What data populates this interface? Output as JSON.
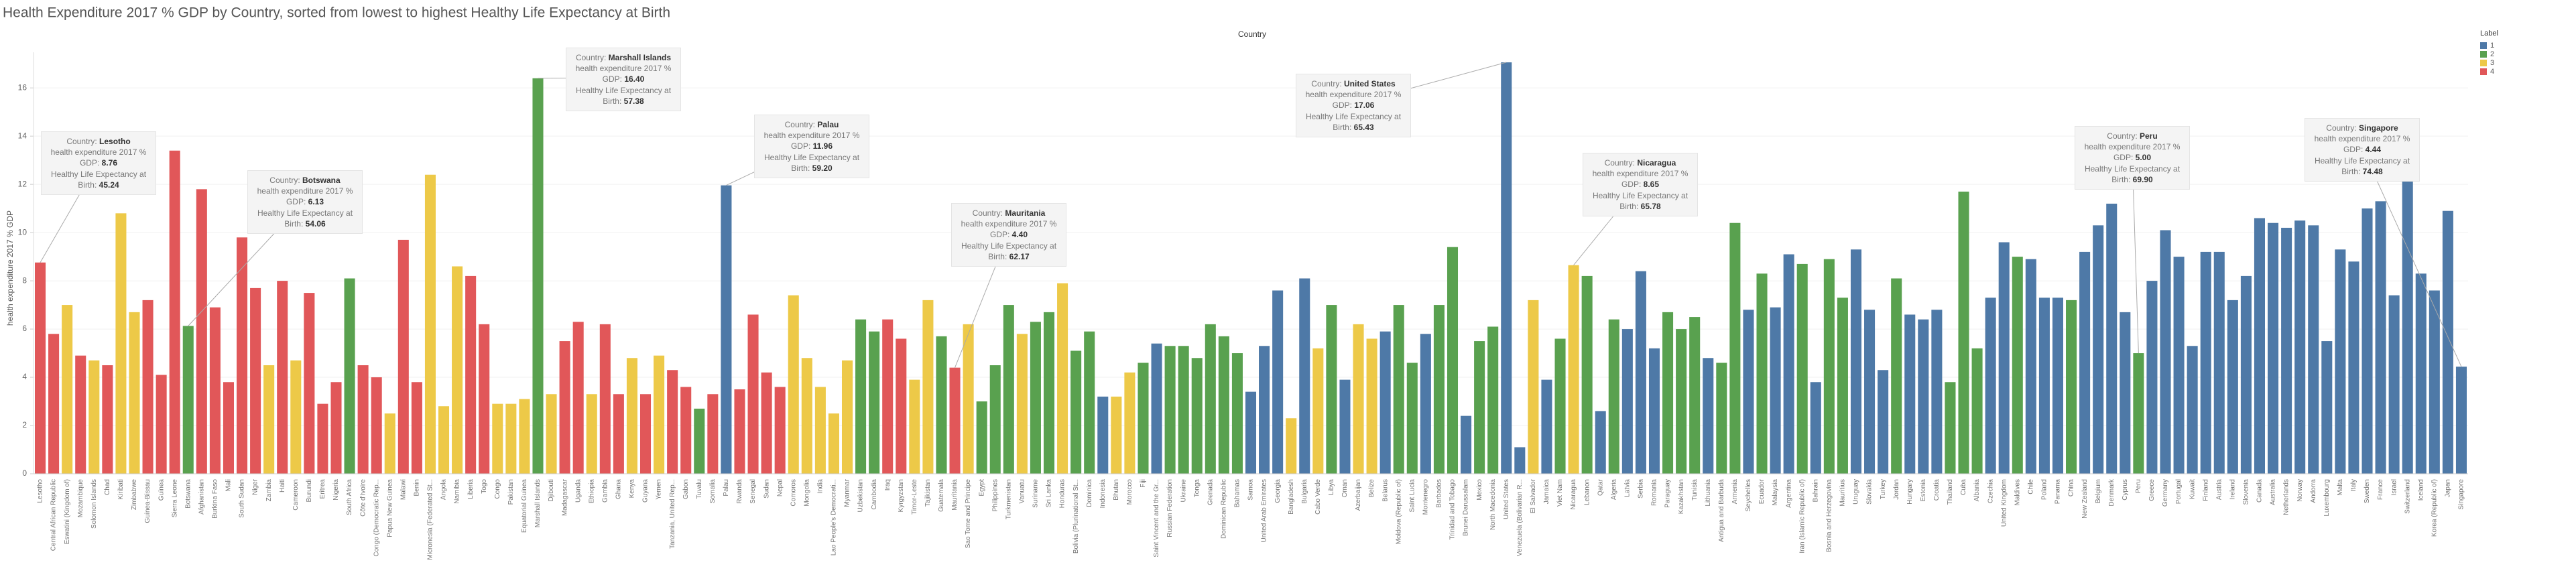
{
  "chart_data": {
    "type": "bar",
    "title": "Health Expenditure 2017 % GDP by Country, sorted from lowest to highest Healthy Life Expectancy at Birth",
    "column_header": "Country",
    "y_label": "health expenditure 2017 % GDP",
    "ylim": [
      0,
      17.2
    ],
    "yticks": [
      0,
      2,
      4,
      6,
      8,
      10,
      12,
      14,
      16
    ],
    "grid": true,
    "legend": {
      "title": "Label",
      "position": "top-right",
      "entries": [
        {
          "name": "1",
          "color": "#4e79a7"
        },
        {
          "name": "2",
          "color": "#59a14f"
        },
        {
          "name": "3",
          "color": "#edc948"
        },
        {
          "name": "4",
          "color": "#e15759"
        }
      ]
    },
    "categories": [
      "Lesotho",
      "Central African Republic",
      "Eswatini (Kingdom of)",
      "Mozambique",
      "Solomon Islands",
      "Chad",
      "Kiribati",
      "Zimbabwe",
      "Guinea-Bissau",
      "Guinea",
      "Sierra Leone",
      "Botswana",
      "Afghanistan",
      "Burkina Faso",
      "Mali",
      "South Sudan",
      "Niger",
      "Zambia",
      "Haiti",
      "Cameroon",
      "Burundi",
      "Eritrea",
      "Nigeria",
      "South Africa",
      "Côte d'Ivoire",
      "Congo (Democratic Rep...",
      "Papua New Guinea",
      "Malawi",
      "Benin",
      "Micronesia (Federated St...",
      "Angola",
      "Namibia",
      "Liberia",
      "Togo",
      "Congo",
      "Pakistan",
      "Equatorial Guinea",
      "Marshall Islands",
      "Djibouti",
      "Madagascar",
      "Uganda",
      "Ethiopia",
      "Gambia",
      "Ghana",
      "Kenya",
      "Guyana",
      "Yemen",
      "Tanzania, United Rep...",
      "Gabon",
      "Tuvalu",
      "Somalia",
      "Palau",
      "Rwanda",
      "Senegal",
      "Sudan",
      "Nepal",
      "Comoros",
      "Mongolia",
      "India",
      "Lao People's Democrati...",
      "Myanmar",
      "Uzbekistan",
      "Cambodia",
      "Iraq",
      "Kyrgyzstan",
      "Timor-Leste",
      "Tajikistan",
      "Guatemala",
      "Mauritania",
      "Sao Tome and Principe",
      "Egypt",
      "Philippines",
      "Turkmenistan",
      "Vanuatu",
      "Suriname",
      "Sri Lanka",
      "Honduras",
      "Bolivia (Plurinational St...",
      "Dominica",
      "Indonesia",
      "Bhutan",
      "Morocco",
      "Fiji",
      "Saint Vincent and the Gr...",
      "Russian Federation",
      "Ukraine",
      "Tonga",
      "Grenada",
      "Dominican Republic",
      "Bahamas",
      "Samoa",
      "United Arab Emirates",
      "Georgia",
      "Bangladesh",
      "Bulgaria",
      "Cabo Verde",
      "Libya",
      "Oman",
      "Azerbaijan",
      "Belize",
      "Belarus",
      "Moldova (Republic of)",
      "Saint Lucia",
      "Montenegro",
      "Barbados",
      "Trinidad and Tobago",
      "Brunei Darussalam",
      "Mexico",
      "North Macedonia",
      "United States",
      "Venezuela (Bolivarian R...",
      "El Salvador",
      "Jamaica",
      "Viet Nam",
      "Nicaragua",
      "Lebanon",
      "Qatar",
      "Algeria",
      "Latvia",
      "Serbia",
      "Romania",
      "Paraguay",
      "Kazakhstan",
      "Tunisia",
      "Lithuania",
      "Antigua and Barbuda",
      "Armenia",
      "Seychelles",
      "Ecuador",
      "Malaysia",
      "Argentina",
      "Iran (Islamic Republic of)",
      "Bahrain",
      "Bosnia and Herzegovina",
      "Mauritius",
      "Uruguay",
      "Slovakia",
      "Turkey",
      "Jordan",
      "Hungary",
      "Estonia",
      "Croatia",
      "Thailand",
      "Cuba",
      "Albania",
      "Czechia",
      "United Kingdom",
      "Maldives",
      "Chile",
      "Poland",
      "Panama",
      "China",
      "New Zealand",
      "Belgium",
      "Denmark",
      "Cyprus",
      "Peru",
      "Greece",
      "Germany",
      "Portugal",
      "Kuwait",
      "Finland",
      "Austria",
      "Ireland",
      "Slovenia",
      "Canada",
      "Australia",
      "Netherlands",
      "Norway",
      "Andorra",
      "Luxembourg",
      "Malta",
      "Italy",
      "Sweden",
      "France",
      "Israel",
      "Switzerland",
      "Iceland",
      "Korea (Republic of)",
      "Japan",
      "Singapore"
    ],
    "values": [
      8.76,
      5.8,
      7.0,
      4.9,
      4.7,
      4.5,
      10.8,
      6.7,
      7.2,
      4.1,
      13.4,
      6.13,
      11.8,
      6.9,
      3.8,
      9.8,
      7.7,
      4.5,
      8.0,
      4.7,
      7.5,
      2.9,
      3.8,
      8.1,
      4.5,
      4.0,
      2.5,
      9.7,
      3.8,
      12.4,
      2.8,
      8.6,
      8.2,
      6.2,
      2.9,
      2.9,
      3.1,
      16.4,
      3.3,
      5.5,
      6.3,
      3.3,
      6.2,
      3.3,
      4.8,
      3.3,
      4.9,
      4.3,
      3.6,
      2.7,
      3.3,
      11.96,
      3.5,
      6.6,
      4.2,
      3.6,
      7.4,
      4.8,
      3.6,
      2.5,
      4.7,
      6.4,
      5.9,
      6.4,
      5.6,
      3.9,
      7.2,
      5.7,
      4.4,
      6.2,
      3.0,
      4.5,
      7.0,
      5.8,
      6.3,
      6.7,
      7.9,
      5.1,
      5.9,
      3.2,
      3.2,
      4.2,
      4.6,
      5.4,
      5.3,
      5.3,
      4.8,
      6.2,
      5.7,
      5.0,
      3.4,
      5.3,
      7.6,
      2.3,
      8.1,
      5.2,
      7.0,
      3.9,
      6.2,
      5.6,
      5.9,
      7.0,
      4.6,
      5.8,
      7.0,
      9.4,
      2.4,
      5.5,
      6.1,
      17.06,
      1.1,
      7.2,
      3.9,
      5.6,
      8.65,
      8.2,
      2.6,
      6.4,
      6.0,
      8.4,
      5.2,
      6.7,
      6.0,
      6.5,
      4.8,
      4.6,
      10.4,
      6.8,
      8.3,
      6.9,
      9.1,
      8.7,
      3.8,
      8.9,
      7.3,
      9.3,
      6.8,
      4.3,
      8.1,
      6.6,
      6.4,
      6.8,
      3.8,
      11.7,
      5.2,
      7.3,
      9.6,
      9.0,
      8.9,
      7.3,
      7.3,
      7.2,
      9.2,
      10.3,
      11.2,
      6.7,
      5.0,
      8.0,
      10.1,
      9.0,
      5.3,
      9.2,
      9.2,
      7.2,
      8.2,
      10.6,
      10.4,
      10.2,
      10.5,
      10.3,
      5.5,
      9.3,
      8.8,
      11.0,
      11.3,
      7.4,
      12.3,
      8.3,
      7.6,
      10.9,
      4.44
    ],
    "clusters": [
      "4",
      "4",
      "3",
      "4",
      "3",
      "4",
      "3",
      "3",
      "4",
      "4",
      "4",
      "2",
      "4",
      "4",
      "4",
      "4",
      "4",
      "3",
      "4",
      "3",
      "4",
      "4",
      "4",
      "2",
      "4",
      "4",
      "3",
      "4",
      "4",
      "3",
      "3",
      "3",
      "4",
      "4",
      "3",
      "3",
      "3",
      "2",
      "3",
      "4",
      "4",
      "3",
      "4",
      "4",
      "3",
      "4",
      "3",
      "4",
      "4",
      "2",
      "4",
      "1",
      "4",
      "4",
      "4",
      "4",
      "3",
      "3",
      "3",
      "3",
      "3",
      "2",
      "2",
      "4",
      "4",
      "3",
      "3",
      "2",
      "4",
      "3",
      "2",
      "2",
      "2",
      "3",
      "2",
      "2",
      "3",
      "2",
      "2",
      "1",
      "3",
      "3",
      "2",
      "1",
      "2",
      "2",
      "2",
      "2",
      "2",
      "2",
      "1",
      "1",
      "1",
      "3",
      "1",
      "3",
      "2",
      "1",
      "3",
      "3",
      "1",
      "2",
      "2",
      "1",
      "2",
      "2",
      "1",
      "2",
      "2",
      "1",
      "1",
      "3",
      "1",
      "2",
      "3",
      "2",
      "1",
      "2",
      "1",
      "1",
      "1",
      "2",
      "2",
      "2",
      "1",
      "2",
      "2",
      "1",
      "2",
      "1",
      "1",
      "2",
      "1",
      "2",
      "2",
      "1",
      "1",
      "1",
      "2",
      "1",
      "1",
      "1",
      "2",
      "2",
      "2",
      "1",
      "1",
      "2",
      "1",
      "1",
      "1",
      "2",
      "1",
      "1",
      "1",
      "1",
      "2",
      "1",
      "1",
      "1",
      "1",
      "1",
      "1",
      "1",
      "1",
      "1",
      "1",
      "1",
      "1",
      "1",
      "1",
      "1",
      "1",
      "1",
      "1",
      "1",
      "1",
      "1",
      "1",
      "1",
      "1"
    ],
    "annotation_labels": {
      "country": "Country:",
      "expenditure": "health expenditure 2017 % GDP:",
      "hle": "Healthy Life Expectancy at Birth:"
    },
    "annotations": [
      {
        "country": "Lesotho",
        "expenditure": 8.76,
        "hle": 45.24
      },
      {
        "country": "Botswana",
        "expenditure": 6.13,
        "hle": 54.06
      },
      {
        "country": "Marshall Islands",
        "expenditure": 16.4,
        "expenditure_label": "16.40",
        "hle": 57.38
      },
      {
        "country": "Palau",
        "expenditure": 11.96,
        "hle": 59.2,
        "hle_label": "59.20"
      },
      {
        "country": "Mauritania",
        "expenditure": 4.4,
        "expenditure_label": "4.40",
        "hle": 62.17
      },
      {
        "country": "United States",
        "expenditure": 17.06,
        "hle": 65.43
      },
      {
        "country": "Nicaragua",
        "expenditure": 8.65,
        "hle": 65.78
      },
      {
        "country": "Peru",
        "expenditure": 5,
        "expenditure_label": "5.00",
        "hle": 69.9,
        "hle_label": "69.90"
      },
      {
        "country": "Singapore",
        "expenditure": 4.44,
        "hle": 74.48
      }
    ]
  }
}
